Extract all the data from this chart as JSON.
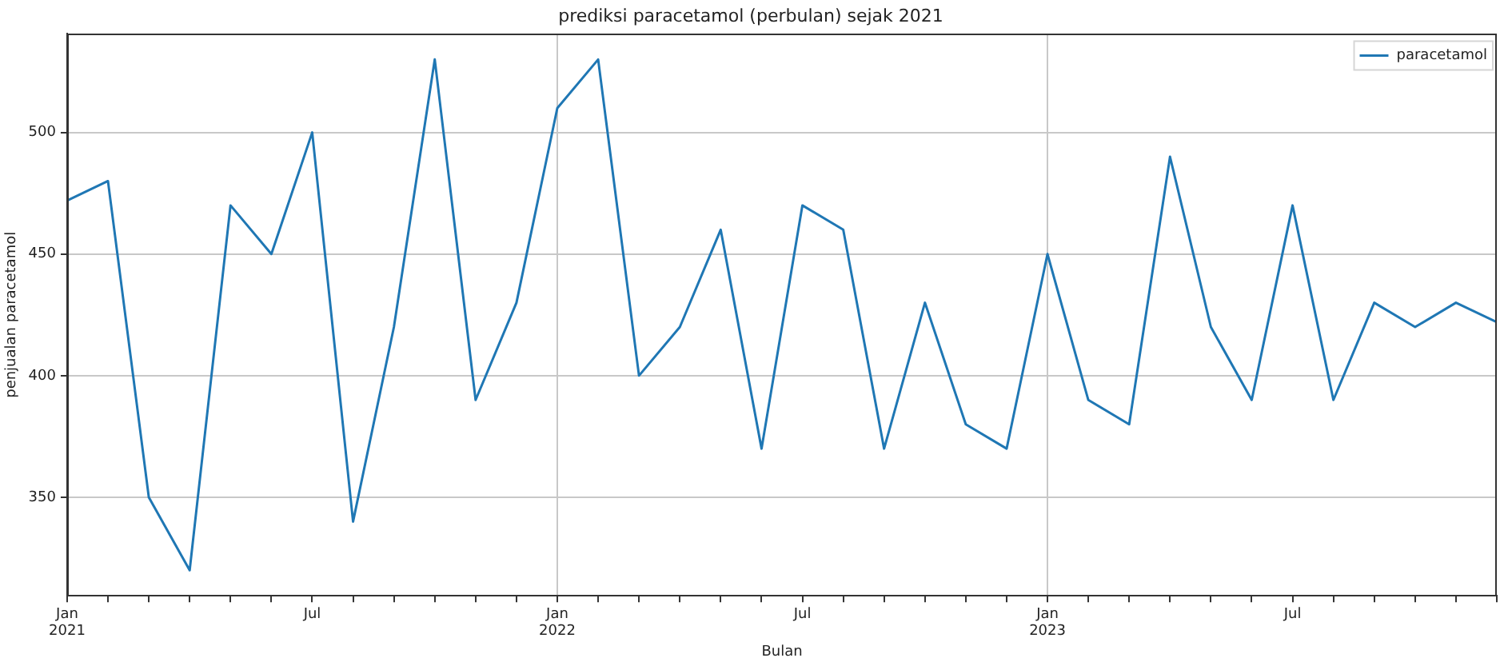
{
  "chart_data": {
    "type": "line",
    "title": "prediksi paracetamol (perbulan) sejak 2021",
    "xlabel": "Bulan",
    "ylabel": "penjualan paracetamol",
    "x": [
      "2021-01",
      "2021-02",
      "2021-03",
      "2021-04",
      "2021-05",
      "2021-06",
      "2021-07",
      "2021-08",
      "2021-09",
      "2021-10",
      "2021-11",
      "2021-12",
      "2022-01",
      "2022-02",
      "2022-03",
      "2022-04",
      "2022-05",
      "2022-06",
      "2022-07",
      "2022-08",
      "2022-09",
      "2022-10",
      "2022-11",
      "2022-12",
      "2023-01",
      "2023-02",
      "2023-03",
      "2023-04",
      "2023-05",
      "2023-06",
      "2023-07",
      "2023-08",
      "2023-09",
      "2023-10",
      "2023-11",
      "2023-12"
    ],
    "series": [
      {
        "name": "paracetamol",
        "color": "#1f77b4",
        "values": [
          472,
          480,
          350,
          320,
          470,
          450,
          500,
          340,
          420,
          530,
          390,
          430,
          510,
          530,
          400,
          420,
          460,
          370,
          470,
          460,
          370,
          430,
          380,
          370,
          450,
          390,
          380,
          490,
          420,
          390,
          470,
          390,
          430,
          420,
          430,
          422
        ]
      }
    ],
    "xlim": [
      "2021-01",
      "2023-12"
    ],
    "ylim": [
      309.5,
      540.5
    ],
    "xticks": [
      {
        "value": "2021-01",
        "label": "Jan\n2021"
      },
      {
        "value": "2021-02",
        "label": null
      },
      {
        "value": "2021-03",
        "label": null
      },
      {
        "value": "2021-04",
        "label": null
      },
      {
        "value": "2021-05",
        "label": null
      },
      {
        "value": "2021-06",
        "label": null
      },
      {
        "value": "2021-07",
        "label": "Jul"
      },
      {
        "value": "2021-08",
        "label": null
      },
      {
        "value": "2021-09",
        "label": null
      },
      {
        "value": "2021-10",
        "label": null
      },
      {
        "value": "2021-11",
        "label": null
      },
      {
        "value": "2021-12",
        "label": null
      },
      {
        "value": "2022-01",
        "label": "Jan\n2022"
      },
      {
        "value": "2022-02",
        "label": null
      },
      {
        "value": "2022-03",
        "label": null
      },
      {
        "value": "2022-04",
        "label": null
      },
      {
        "value": "2022-05",
        "label": null
      },
      {
        "value": "2022-06",
        "label": null
      },
      {
        "value": "2022-07",
        "label": "Jul"
      },
      {
        "value": "2022-08",
        "label": null
      },
      {
        "value": "2022-09",
        "label": null
      },
      {
        "value": "2022-10",
        "label": null
      },
      {
        "value": "2022-11",
        "label": null
      },
      {
        "value": "2022-12",
        "label": null
      },
      {
        "value": "2023-01",
        "label": "Jan\n2023"
      },
      {
        "value": "2023-02",
        "label": null
      },
      {
        "value": "2023-03",
        "label": null
      },
      {
        "value": "2023-04",
        "label": null
      },
      {
        "value": "2023-05",
        "label": null
      },
      {
        "value": "2023-06",
        "label": null
      },
      {
        "value": "2023-07",
        "label": "Jul"
      },
      {
        "value": "2023-08",
        "label": null
      },
      {
        "value": "2023-09",
        "label": null
      },
      {
        "value": "2023-10",
        "label": null
      },
      {
        "value": "2023-11",
        "label": null
      },
      {
        "value": "2023-12",
        "label": null
      }
    ],
    "yticks": [
      350,
      400,
      450,
      500
    ],
    "grid": true,
    "legend": "top right"
  }
}
